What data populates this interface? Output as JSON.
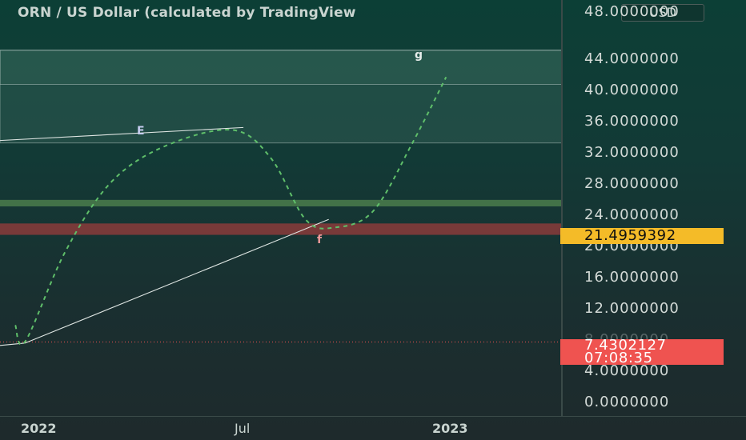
{
  "chart": {
    "title": "ORN / US Dollar (calculated by TradingView",
    "currency": "USD",
    "price_ticks": [
      "48.0000000",
      "44.0000000",
      "40.0000000",
      "36.0000000",
      "32.0000000",
      "28.0000000",
      "24.0000000",
      "20.0000000",
      "16.0000000",
      "12.0000000",
      "8.0000000",
      "4.0000000",
      "0.0000000"
    ],
    "current_price": "21.4959392",
    "last_price": "7.4302127",
    "countdown": "07:08:35",
    "time_labels": [
      "2022",
      "Jul",
      "2023"
    ],
    "wave_labels": [
      "E",
      "f",
      "g"
    ],
    "colors": {
      "projection": "#5fbf6a",
      "resistance_zone": "#4a7c4c",
      "support_zone": "#8a3b3b",
      "current_tag": "#f4bb28",
      "last_tag": "#ef5350"
    }
  },
  "chart_data": {
    "type": "line",
    "xlabel": "",
    "ylabel": "",
    "x_ticks": [
      "2022",
      "Jul",
      "2023"
    ],
    "y_ticks": [
      48,
      44,
      40,
      36,
      32,
      28,
      24,
      20,
      16,
      12,
      8,
      4,
      0
    ],
    "ylim": [
      0,
      50
    ],
    "grid": false,
    "current_price": 21.4959392,
    "last_price": 7.4302127,
    "zones": [
      {
        "from": 31.9,
        "to": 43.3
      },
      {
        "from": 39.1,
        "to": 43.3
      },
      {
        "from": 24.1,
        "to": 24.9
      },
      {
        "from": 20.6,
        "to": 22.0
      }
    ],
    "trendlines": [
      {
        "from": [
          "2021-09-01",
          32.2
        ],
        "to": [
          "2022-06-25",
          33.8
        ]
      },
      {
        "from": [
          "2021-09-01",
          7.0
        ],
        "to": [
          "2021-12-10",
          7.3
        ]
      },
      {
        "from": [
          "2021-12-10",
          7.3
        ],
        "to": [
          "2022-09-10",
          22.5
        ]
      }
    ],
    "projection": [
      [
        "2021-12-01",
        9.5
      ],
      [
        "2021-12-10",
        7.5
      ],
      [
        "2022-01-15",
        18.5
      ],
      [
        "2022-02-25",
        27.0
      ],
      [
        "2022-04-15",
        31.5
      ],
      [
        "2022-06-15",
        33.5
      ],
      [
        "2022-07-20",
        30.0
      ],
      [
        "2022-08-20",
        22.5
      ],
      [
        "2022-09-15",
        21.5
      ],
      [
        "2022-10-20",
        23.5
      ],
      [
        "2022-11-25",
        32.0
      ],
      [
        "2022-12-25",
        40.0
      ]
    ],
    "wave_points": [
      {
        "label": "E",
        "x": "2022-06-01",
        "y": 35.2
      },
      {
        "label": "f",
        "x": "2022-10-01",
        "y": 21.0
      },
      {
        "label": "g",
        "x": "2022-12-25",
        "y": 45.5
      }
    ]
  }
}
